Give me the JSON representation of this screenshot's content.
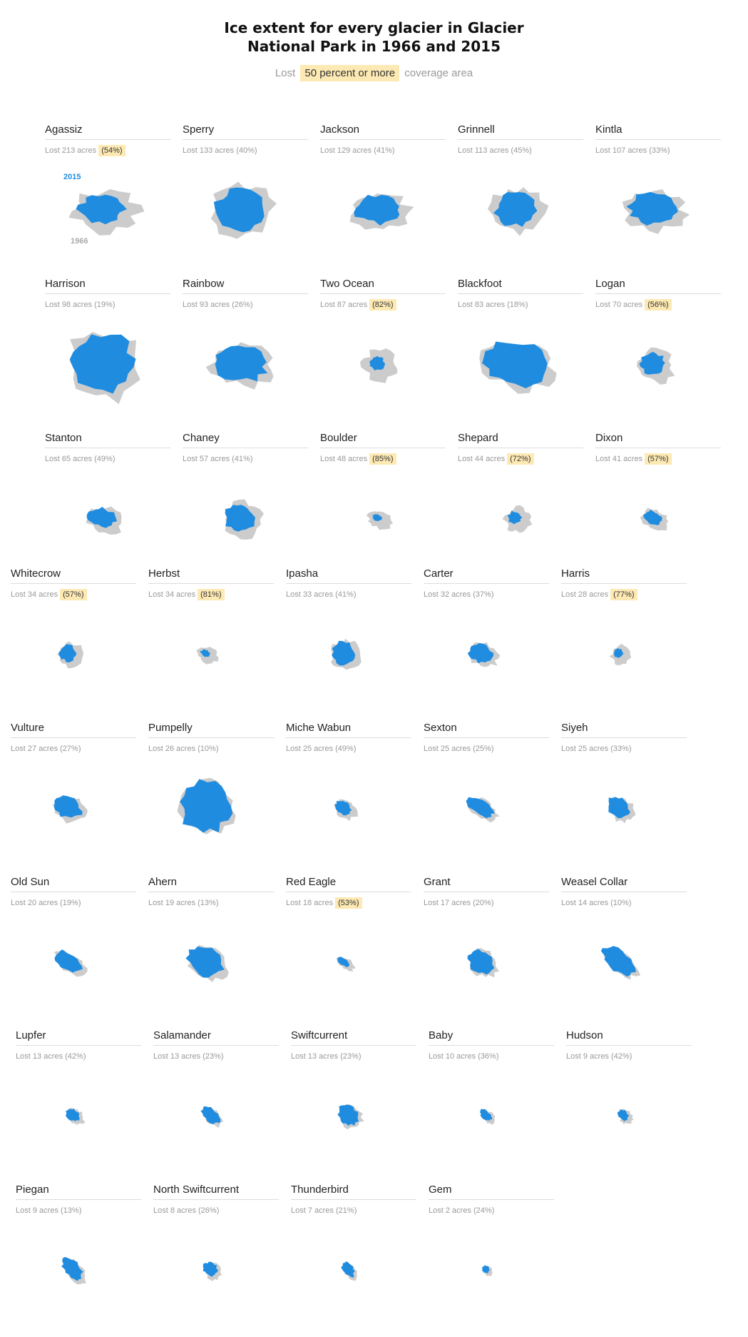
{
  "title_lines": [
    "Ice extent for every glacier in Glacier",
    "National Park in 1966 and 2015"
  ],
  "subtitle": {
    "prefix": "Lost",
    "highlight": "50 percent or more",
    "suffix": "coverage area"
  },
  "colors": {
    "ice_2015": "#1f8ce0",
    "ice_1966": "#cccccc",
    "highlight": "#fde9b3"
  },
  "legend": {
    "label_2015": "2015",
    "label_1966": "1966"
  },
  "chart_data": {
    "type": "small-multiples",
    "glaciers": [
      {
        "name": "Agassiz",
        "acres": "213",
        "pct": "54",
        "lost_acres": 213,
        "lost_pct": 54,
        "highlight": true
      },
      {
        "name": "Sperry",
        "acres": "133",
        "pct": "40",
        "lost_acres": 133,
        "lost_pct": 40,
        "highlight": false
      },
      {
        "name": "Jackson",
        "acres": "129",
        "pct": "41",
        "lost_acres": 129,
        "lost_pct": 41,
        "highlight": false
      },
      {
        "name": "Grinnell",
        "acres": "113",
        "pct": "45",
        "lost_acres": 113,
        "lost_pct": 45,
        "highlight": false
      },
      {
        "name": "Kintla",
        "acres": "107",
        "pct": "33",
        "lost_acres": 107,
        "lost_pct": 33,
        "highlight": false
      },
      {
        "name": "Harrison",
        "acres": "98",
        "pct": "19",
        "lost_acres": 98,
        "lost_pct": 19,
        "highlight": false
      },
      {
        "name": "Rainbow",
        "acres": "93",
        "pct": "26",
        "lost_acres": 93,
        "lost_pct": 26,
        "highlight": false
      },
      {
        "name": "Two Ocean",
        "acres": "87",
        "pct": "82",
        "lost_acres": 87,
        "lost_pct": 82,
        "highlight": true
      },
      {
        "name": "Blackfoot",
        "acres": "83",
        "pct": "18",
        "lost_acres": 83,
        "lost_pct": 18,
        "highlight": false
      },
      {
        "name": "Logan",
        "acres": "70",
        "pct": "56",
        "lost_acres": 70,
        "lost_pct": 56,
        "highlight": true
      },
      {
        "name": "Stanton",
        "acres": "65",
        "pct": "49",
        "lost_acres": 65,
        "lost_pct": 49,
        "highlight": false
      },
      {
        "name": "Chaney",
        "acres": "57",
        "pct": "41",
        "lost_acres": 57,
        "lost_pct": 41,
        "highlight": false
      },
      {
        "name": "Boulder",
        "acres": "48",
        "pct": "85",
        "lost_acres": 48,
        "lost_pct": 85,
        "highlight": true
      },
      {
        "name": "Shepard",
        "acres": "44",
        "pct": "72",
        "lost_acres": 44,
        "lost_pct": 72,
        "highlight": true
      },
      {
        "name": "Dixon",
        "acres": "41",
        "pct": "57",
        "lost_acres": 41,
        "lost_pct": 57,
        "highlight": true
      },
      {
        "name": "Whitecrow",
        "acres": "34",
        "pct": "57",
        "lost_acres": 34,
        "lost_pct": 57,
        "highlight": true
      },
      {
        "name": "Herbst",
        "acres": "34",
        "pct": "81",
        "lost_acres": 34,
        "lost_pct": 81,
        "highlight": true
      },
      {
        "name": "Ipasha",
        "acres": "33",
        "pct": "41",
        "lost_acres": 33,
        "lost_pct": 41,
        "highlight": false
      },
      {
        "name": "Carter",
        "acres": "32",
        "pct": "37",
        "lost_acres": 32,
        "lost_pct": 37,
        "highlight": false
      },
      {
        "name": "Harris",
        "acres": "28",
        "pct": "77",
        "lost_acres": 28,
        "lost_pct": 77,
        "highlight": true
      },
      {
        "name": "Vulture",
        "acres": "27",
        "pct": "27",
        "lost_acres": 27,
        "lost_pct": 27,
        "highlight": false
      },
      {
        "name": "Pumpelly",
        "acres": "26",
        "pct": "10",
        "lost_acres": 26,
        "lost_pct": 10,
        "highlight": false
      },
      {
        "name": "Miche Wabun",
        "acres": "25",
        "pct": "49",
        "lost_acres": 25,
        "lost_pct": 49,
        "highlight": false
      },
      {
        "name": "Sexton",
        "acres": "25",
        "pct": "25",
        "lost_acres": 25,
        "lost_pct": 25,
        "highlight": false
      },
      {
        "name": "Siyeh",
        "acres": "25",
        "pct": "33",
        "lost_acres": 25,
        "lost_pct": 33,
        "highlight": false
      },
      {
        "name": "Old Sun",
        "acres": "20",
        "pct": "19",
        "lost_acres": 20,
        "lost_pct": 19,
        "highlight": false
      },
      {
        "name": "Ahern",
        "acres": "19",
        "pct": "13",
        "lost_acres": 19,
        "lost_pct": 13,
        "highlight": false
      },
      {
        "name": "Red Eagle",
        "acres": "18",
        "pct": "53",
        "lost_acres": 18,
        "lost_pct": 53,
        "highlight": true
      },
      {
        "name": "Grant",
        "acres": "17",
        "pct": "20",
        "lost_acres": 17,
        "lost_pct": 20,
        "highlight": false
      },
      {
        "name": "Weasel Collar",
        "acres": "14",
        "pct": "10",
        "lost_acres": 14,
        "lost_pct": 10,
        "highlight": false
      },
      {
        "name": "Lupfer",
        "acres": "13",
        "pct": "42",
        "lost_acres": 13,
        "lost_pct": 42,
        "highlight": false
      },
      {
        "name": "Salamander",
        "acres": "13",
        "pct": "23",
        "lost_acres": 13,
        "lost_pct": 23,
        "highlight": false
      },
      {
        "name": "Swiftcurrent",
        "acres": "13",
        "pct": "23",
        "lost_acres": 13,
        "lost_pct": 23,
        "highlight": false
      },
      {
        "name": "Baby",
        "acres": "10",
        "pct": "36",
        "lost_acres": 10,
        "lost_pct": 36,
        "highlight": false
      },
      {
        "name": "Hudson",
        "acres": "9",
        "pct": "42",
        "lost_acres": 9,
        "lost_pct": 42,
        "highlight": false
      },
      {
        "name": "Piegan",
        "acres": "9",
        "pct": "13",
        "lost_acres": 9,
        "lost_pct": 13,
        "highlight": false
      },
      {
        "name": "North Swiftcurrent",
        "acres": "8",
        "pct": "26",
        "lost_acres": 8,
        "lost_pct": 26,
        "highlight": false
      },
      {
        "name": "Thunderbird",
        "acres": "7",
        "pct": "21",
        "lost_acres": 7,
        "lost_pct": 21,
        "highlight": false
      },
      {
        "name": "Gem",
        "acres": "2",
        "pct": "24",
        "lost_acres": 2,
        "lost_pct": 24,
        "highlight": false
      }
    ]
  }
}
